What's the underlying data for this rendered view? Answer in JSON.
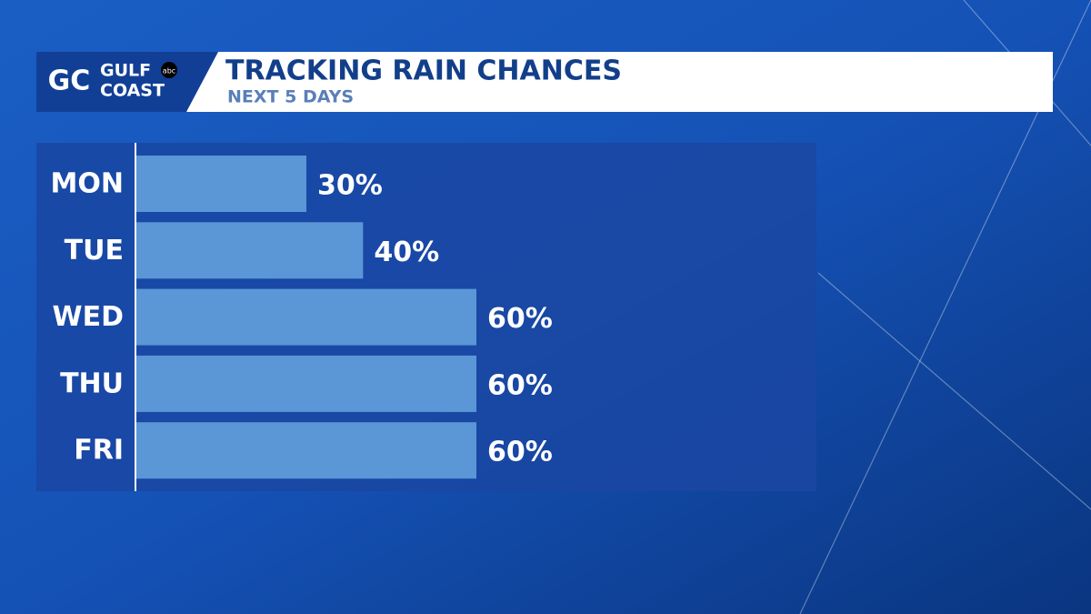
{
  "brand": {
    "mark": "GC",
    "line1": "GULF",
    "line2": "COAST",
    "network": "abc"
  },
  "chart_data": {
    "type": "bar",
    "orientation": "horizontal",
    "title": "TRACKING RAIN CHANCES",
    "subtitle": "NEXT 5 DAYS",
    "categories": [
      "MON",
      "TUE",
      "WED",
      "THU",
      "FRI"
    ],
    "values": [
      30,
      40,
      60,
      60,
      60
    ],
    "value_labels": [
      "30%",
      "40%",
      "60%",
      "60%",
      "60%"
    ],
    "color": "#5b96d6",
    "xlim": [
      0,
      120
    ]
  }
}
